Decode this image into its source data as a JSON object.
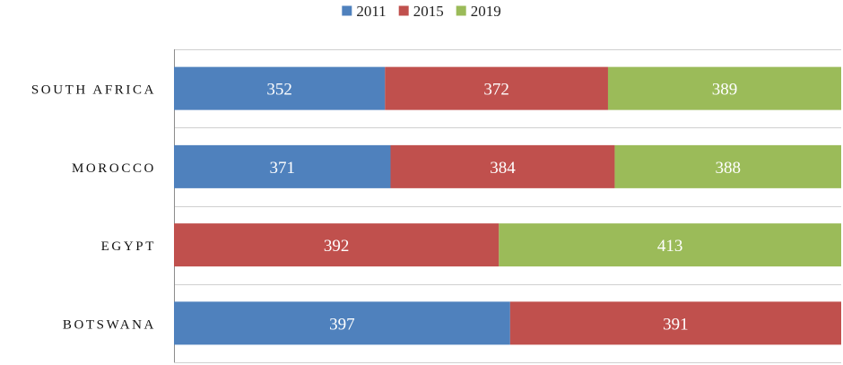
{
  "chart_data": {
    "type": "bar",
    "orientation": "horizontal",
    "stacked": true,
    "categories": [
      "SOUTH AFRICA",
      "MOROCCO",
      "EGYPT",
      "BOTSWANA"
    ],
    "series": [
      {
        "name": "2011",
        "color": "#4f81bd",
        "values": [
          352,
          371,
          null,
          397
        ]
      },
      {
        "name": "2015",
        "color": "#c0504d",
        "values": [
          372,
          384,
          392,
          391
        ]
      },
      {
        "name": "2019",
        "color": "#9bbb59",
        "values": [
          389,
          388,
          413,
          null
        ]
      }
    ],
    "legend_position": "top-center",
    "grid": true,
    "title": "",
    "xlabel": "",
    "ylabel": ""
  }
}
